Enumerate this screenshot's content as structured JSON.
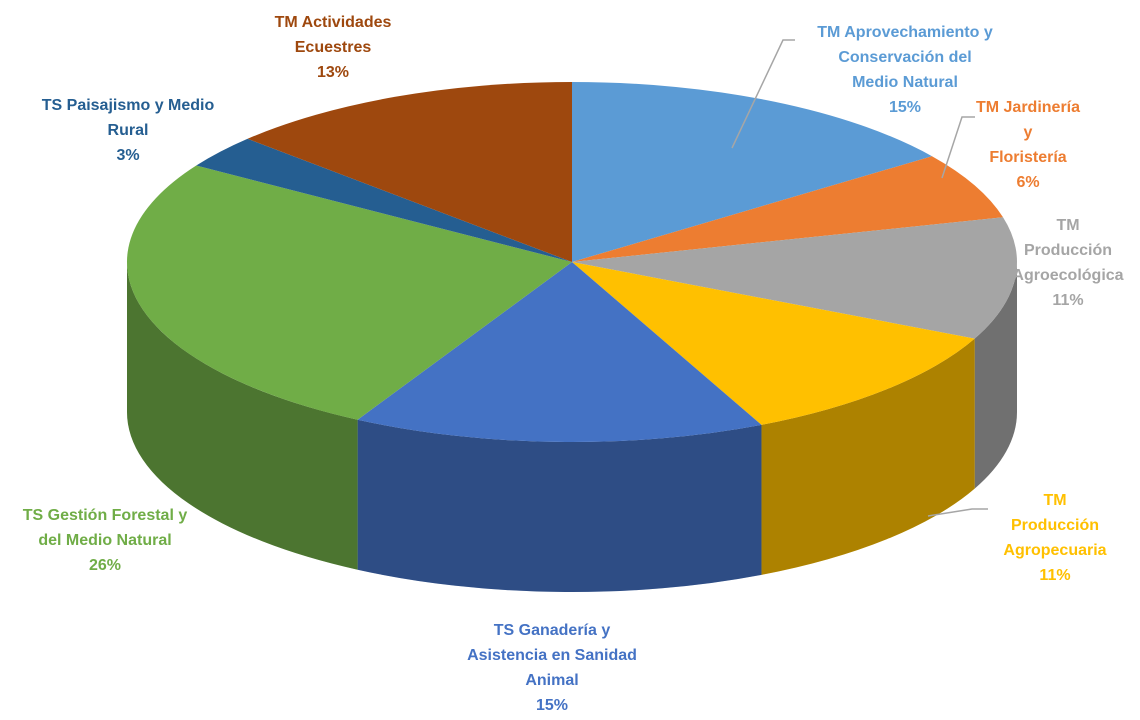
{
  "chart_data": {
    "type": "pie3d",
    "categories": [
      "TM Aprovechamiento y\nConservación del\nMedio Natural",
      "TM Jardinería y\nFloristería",
      "TM Producción\nAgroecológica",
      "TM Producción\nAgropecuaria",
      "TS Ganadería y\nAsistencia en Sanidad\nAnimal",
      "TS Gestión Forestal y\ndel Medio Natural",
      "TS Paisajismo  y Medio\nRural",
      "TM Actividades\nEcuestres"
    ],
    "values": [
      15,
      6,
      11,
      11,
      15,
      26,
      3,
      13
    ],
    "value_labels": [
      "15%",
      "6%",
      "11%",
      "11%",
      "15%",
      "26%",
      "3%",
      "13%"
    ],
    "colors": [
      "#5b9bd5",
      "#ed7d31",
      "#a5a5a5",
      "#ffc000",
      "#4472c4",
      "#70ad47",
      "#255e91",
      "#9e480e"
    ]
  }
}
